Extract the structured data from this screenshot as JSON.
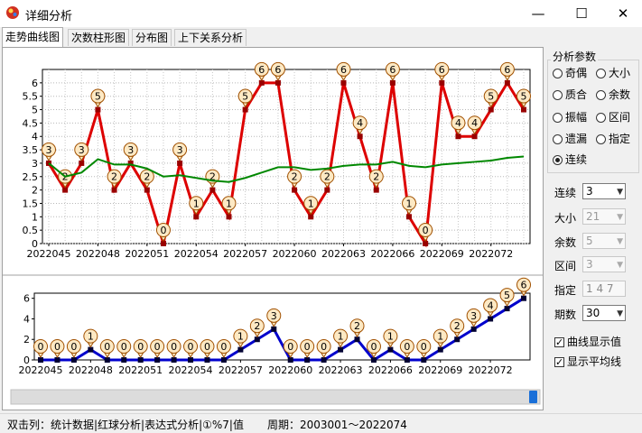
{
  "window": {
    "title": "详细分析",
    "minimize": "—",
    "maximize": "☐",
    "close": "✕"
  },
  "tabs": [
    {
      "label": "走势曲线图",
      "active": true
    },
    {
      "label": "次数柱形图",
      "active": false
    },
    {
      "label": "分布图",
      "active": false
    },
    {
      "label": "上下关系分析",
      "active": false
    }
  ],
  "chart_data": [
    {
      "type": "line",
      "x_tick_labels": [
        "2022045",
        "2022048",
        "2022051",
        "2022054",
        "2022057",
        "2022060",
        "2022063",
        "2022066",
        "2022069",
        "2022072"
      ],
      "ylim": [
        0,
        6.5
      ],
      "y_ticks": [
        "0",
        "0.5",
        "1",
        "1.5",
        "2",
        "2.5",
        "3",
        "3.5",
        "4",
        "4.5",
        "5",
        "5.5",
        "6"
      ],
      "grid": true,
      "series": [
        {
          "values": [
            3,
            2,
            3,
            5,
            2,
            3,
            2,
            0,
            3,
            1,
            2,
            1,
            5,
            6,
            6,
            2,
            1,
            2,
            6,
            4,
            2,
            6,
            1,
            0,
            6,
            4,
            4,
            5,
            6,
            5
          ],
          "color": "#dd0000"
        },
        {
          "values": [
            3,
            2.5,
            2.65,
            3.15,
            2.95,
            2.95,
            2.8,
            2.5,
            2.55,
            2.45,
            2.35,
            2.3,
            2.45,
            2.65,
            2.85,
            2.85,
            2.75,
            2.8,
            2.9,
            2.95,
            2.95,
            3.05,
            2.9,
            2.85,
            2.95,
            3.0,
            3.05,
            3.1,
            3.2,
            3.25
          ],
          "color": "#008800"
        }
      ]
    },
    {
      "type": "line",
      "x_tick_labels": [
        "2022045",
        "2022048",
        "2022051",
        "2022054",
        "2022057",
        "2022060",
        "2022063",
        "2022066",
        "2022069",
        "2022072"
      ],
      "ylim": [
        0,
        6.5
      ],
      "y_ticks": [
        "0",
        "2",
        "4",
        "6"
      ],
      "grid": false,
      "series": [
        {
          "values": [
            0,
            0,
            0,
            1,
            0,
            0,
            0,
            0,
            0,
            0,
            0,
            0,
            1,
            2,
            3,
            0,
            0,
            0,
            1,
            2,
            0,
            1,
            0,
            0,
            1,
            2,
            3,
            4,
            5,
            6
          ],
          "color": "#0000cc"
        }
      ]
    }
  ],
  "colors": {
    "red_line": "#dd0000",
    "green_line": "#008800",
    "blue_line": "#0000cc",
    "marker_fill": "#fde9c4",
    "marker_stroke": "#a05000"
  },
  "panel": {
    "group_title": "分析参数",
    "radios": [
      {
        "label": "奇偶",
        "checked": false
      },
      {
        "label": "大小",
        "checked": false
      },
      {
        "label": "质合",
        "checked": false
      },
      {
        "label": "余数",
        "checked": false
      },
      {
        "label": "振幅",
        "checked": false
      },
      {
        "label": "区间",
        "checked": false
      },
      {
        "label": "遗漏",
        "checked": false
      },
      {
        "label": "指定",
        "checked": false
      },
      {
        "label": "连续",
        "checked": true
      }
    ],
    "fields": [
      {
        "label": "连续",
        "value": "3",
        "disabled": false
      },
      {
        "label": "大小",
        "value": "21",
        "disabled": true
      },
      {
        "label": "余数",
        "value": "5",
        "disabled": true
      },
      {
        "label": "区间",
        "value": "3",
        "disabled": true
      }
    ],
    "specify": {
      "label": "指定",
      "value": "1 4 7"
    },
    "periods": {
      "label": "期数",
      "value": "30"
    },
    "checks": [
      {
        "label": "曲线显示值",
        "checked": true
      },
      {
        "label": "显示平均线",
        "checked": true
      }
    ]
  },
  "status": {
    "left": "双击列：统计数据|红球分析|表达式分析|①%7|值",
    "right": "周期：2003001～2022074"
  }
}
